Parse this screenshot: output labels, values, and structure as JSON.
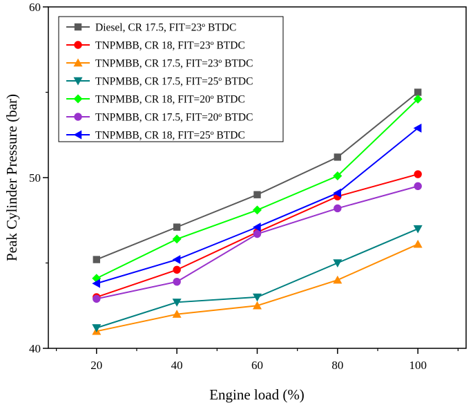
{
  "chart_data": {
    "type": "line",
    "title": "",
    "xlabel": "Engine load (%)",
    "ylabel": "Peak Cylinder Pressure (bar)",
    "xlim": [
      8,
      112
    ],
    "ylim": [
      40,
      60
    ],
    "x": [
      20,
      40,
      60,
      80,
      100
    ],
    "xticks": [
      20,
      40,
      60,
      80,
      100
    ],
    "yticks": [
      40,
      50,
      60
    ],
    "legend_position": "top-left",
    "series": [
      {
        "name": "Diesel, CR 17.5, FIT=23º BTDC",
        "color": "#595959",
        "marker": "square",
        "values": [
          45.2,
          47.1,
          49.0,
          51.2,
          55.0
        ]
      },
      {
        "name": "TNPMBB, CR 18, FIT=23º BTDC",
        "color": "#ff0000",
        "marker": "circle",
        "values": [
          43.0,
          44.6,
          46.8,
          48.9,
          50.2
        ]
      },
      {
        "name": "TNPMBB, CR 17.5, FIT=23º BTDC",
        "color": "#ff8c00",
        "marker": "triangle-up",
        "values": [
          41.0,
          42.0,
          42.5,
          44.0,
          46.1
        ]
      },
      {
        "name": "TNPMBB, CR 17.5, FIT=25º BTDC",
        "color": "#008080",
        "marker": "triangle-down",
        "values": [
          41.2,
          42.7,
          43.0,
          45.0,
          47.0
        ]
      },
      {
        "name": "TNPMBB, CR 18, FIT=20º BTDC",
        "color": "#00ff00",
        "marker": "diamond",
        "values": [
          44.1,
          46.4,
          48.1,
          50.1,
          54.6
        ]
      },
      {
        "name": "TNPMBB, CR 17.5, FIT=20º BTDC",
        "color": "#9932cc",
        "marker": "circle",
        "values": [
          42.9,
          43.9,
          46.7,
          48.2,
          49.5
        ]
      },
      {
        "name": "TNPMBB, CR 18, FIT=25º BTDC",
        "color": "#0000ff",
        "marker": "triangle-left",
        "values": [
          43.8,
          45.2,
          47.1,
          49.1,
          52.9
        ]
      }
    ]
  }
}
